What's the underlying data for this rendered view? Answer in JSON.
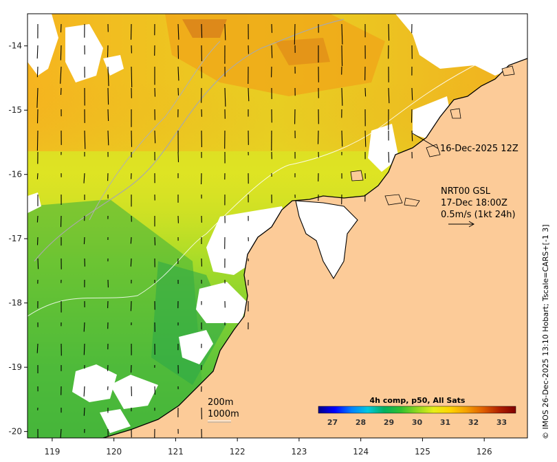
{
  "colors": {
    "land": "#fccb98",
    "cloud": "#ffffff",
    "frame": "#000000",
    "sst_warm": "#f2b020",
    "sst_mid": "#d8e826",
    "sst_cool": "#4fc43a",
    "isobath": "#a9a9a9"
  },
  "map": {
    "projection": "lon-lat",
    "lon_range": [
      118.6,
      126.7
    ],
    "lat_range": [
      -20.1,
      -13.5
    ],
    "x_ticks": [
      "119",
      "120",
      "121",
      "122",
      "123",
      "124",
      "125",
      "126"
    ],
    "y_ticks": [
      "-14",
      "-15",
      "-16",
      "-17",
      "-18",
      "-19",
      "-20"
    ],
    "layers": [
      "sea surface temperature",
      "cloud mask",
      "land",
      "coastline",
      "bathymetry contours",
      "surface current vectors"
    ]
  },
  "annotations": {
    "date_label": "16-Dec-2025 12Z",
    "current_title": "NRT00 GSL",
    "current_time": "17-Dec 18:00Z",
    "current_scale": "0.5m/s (1kt 24h)",
    "contour_200": "200m",
    "contour_1000": "1000m"
  },
  "colorbar": {
    "title": "4h comp, p50, All Sats",
    "range": [
      26.5,
      33.5
    ],
    "ticks": [
      "27",
      "28",
      "29",
      "30",
      "31",
      "32",
      "33"
    ],
    "colormap": [
      "#00008b",
      "#0000ff",
      "#0080ff",
      "#00c8e0",
      "#00b060",
      "#30c030",
      "#90d820",
      "#e6ee18",
      "#ffd400",
      "#f5a000",
      "#e06000",
      "#b02000",
      "#800000"
    ]
  },
  "side_text": "© IMOS 26-Dec-2025 13:10 Hobart; Tscale=CARS+[-1 3]"
}
